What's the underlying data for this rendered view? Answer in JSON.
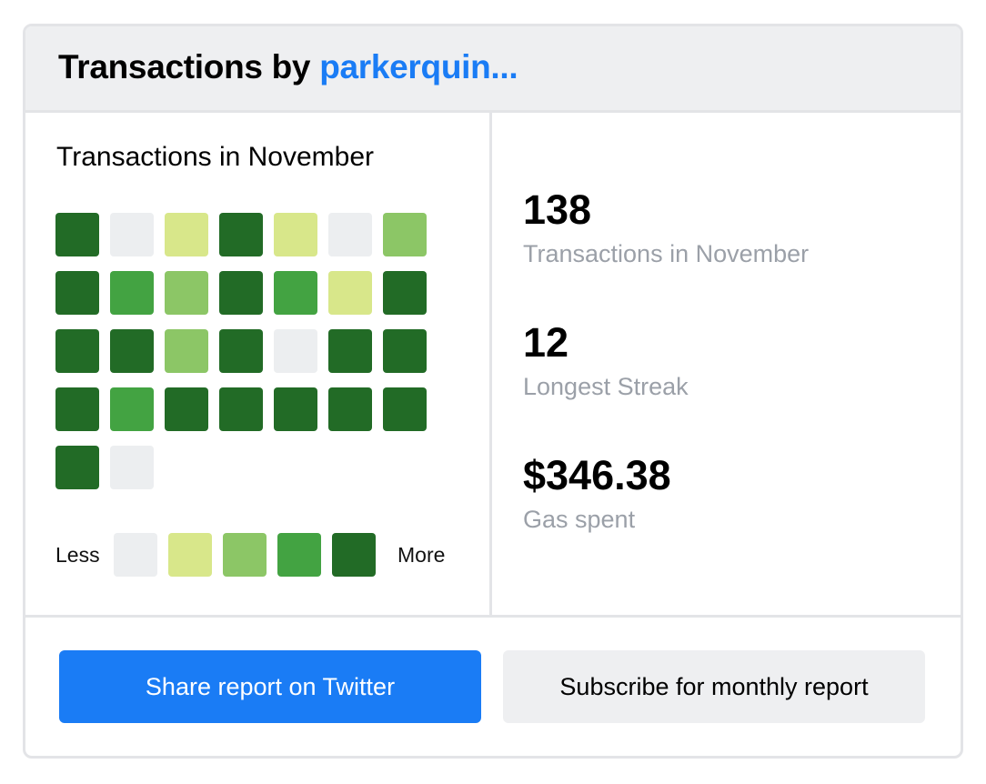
{
  "header": {
    "title_prefix": "Transactions by",
    "username": "parkerquin..."
  },
  "calendar": {
    "title": "Transactions in November",
    "colors": {
      "level0": "#eceef0",
      "level1": "#d8e78a",
      "level2": "#8cc666",
      "level3": "#43a342",
      "level4": "#226b26"
    },
    "days": [
      4,
      0,
      1,
      4,
      1,
      0,
      2,
      4,
      3,
      2,
      4,
      3,
      1,
      4,
      4,
      4,
      2,
      4,
      0,
      4,
      4,
      4,
      3,
      4,
      4,
      4,
      4,
      4,
      4,
      0
    ],
    "legend": {
      "less_label": "Less",
      "more_label": "More",
      "levels": [
        0,
        1,
        2,
        3,
        4
      ]
    }
  },
  "stats": {
    "transactions": {
      "value": "138",
      "label": "Transactions in November"
    },
    "streak": {
      "value": "12",
      "label": "Longest Streak"
    },
    "gas": {
      "value": "$346.38",
      "label": "Gas spent"
    }
  },
  "footer": {
    "share_label": "Share report on Twitter",
    "subscribe_label": "Subscribe for monthly report"
  }
}
